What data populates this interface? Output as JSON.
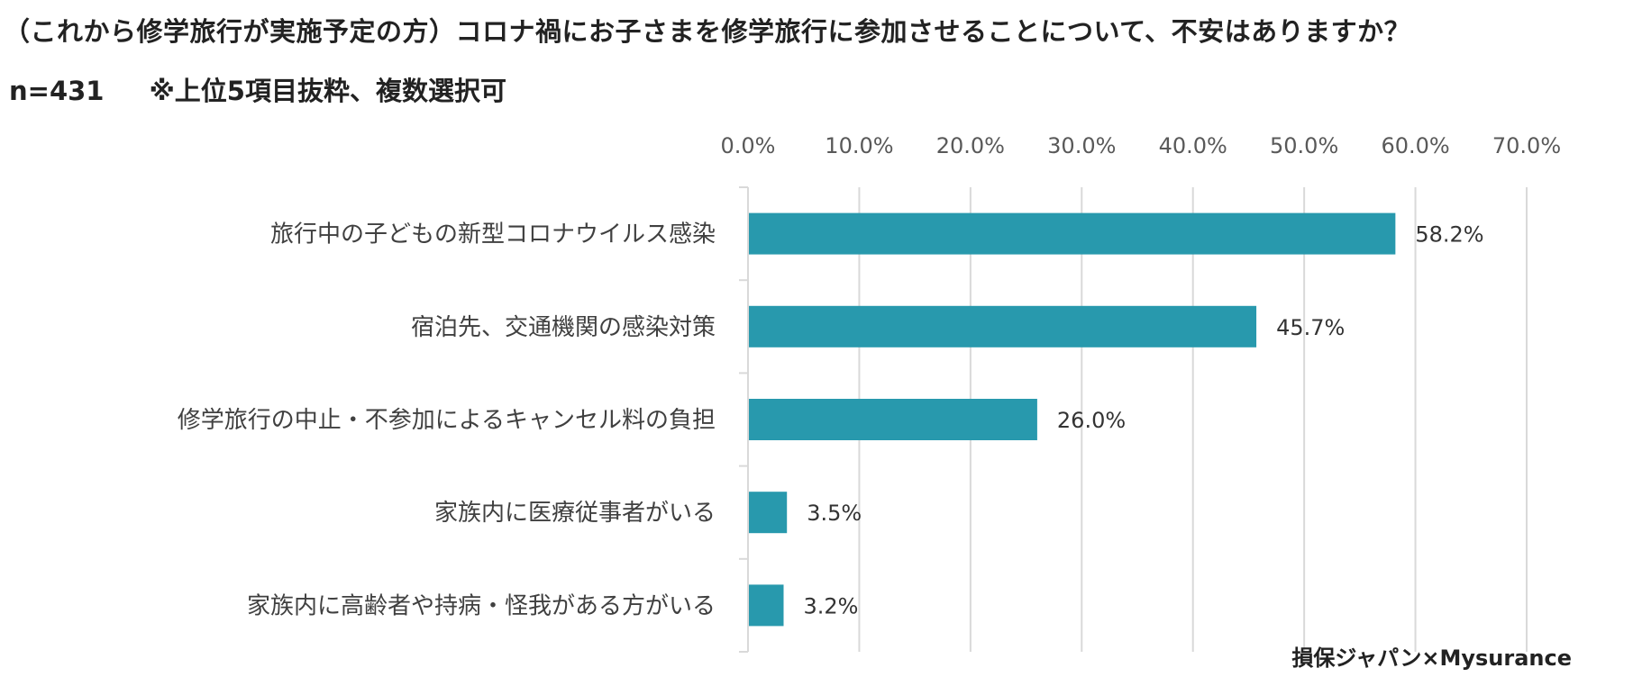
{
  "chart_data": {
    "type": "bar",
    "orientation": "horizontal",
    "title": "（これから修学旅行が実施予定の方）コロナ禍にお子さまを修学旅行に参加させることについて、不安はありますか？",
    "sample": "n=431",
    "note": "※上位5項目抜粋、複数選択可",
    "categories": [
      "旅行中の子どもの新型コロナウイルス感染",
      "宿泊先、交通機関の感染対策",
      "修学旅行の中止・不参加によるキャンセル料の負担",
      "家族内に医療従事者がいる",
      "家族内に高齢者や持病・怪我がある方がいる"
    ],
    "values": [
      58.2,
      45.7,
      26.0,
      3.5,
      3.2
    ],
    "value_labels": [
      "58.2%",
      "45.7%",
      "26.0%",
      "3.5%",
      "3.2%"
    ],
    "xlim": [
      0,
      70
    ],
    "ticks": [
      0,
      10,
      20,
      30,
      40,
      50,
      60,
      70
    ],
    "tick_labels": [
      "0.0%",
      "10.0%",
      "20.0%",
      "30.0%",
      "40.0%",
      "50.0%",
      "60.0%",
      "70.0%"
    ],
    "axis_position": "top",
    "grid": true,
    "bar_color": "#2899ad",
    "grid_color": "#d9d9d9"
  },
  "source": "損保ジャパン×Mysurance"
}
